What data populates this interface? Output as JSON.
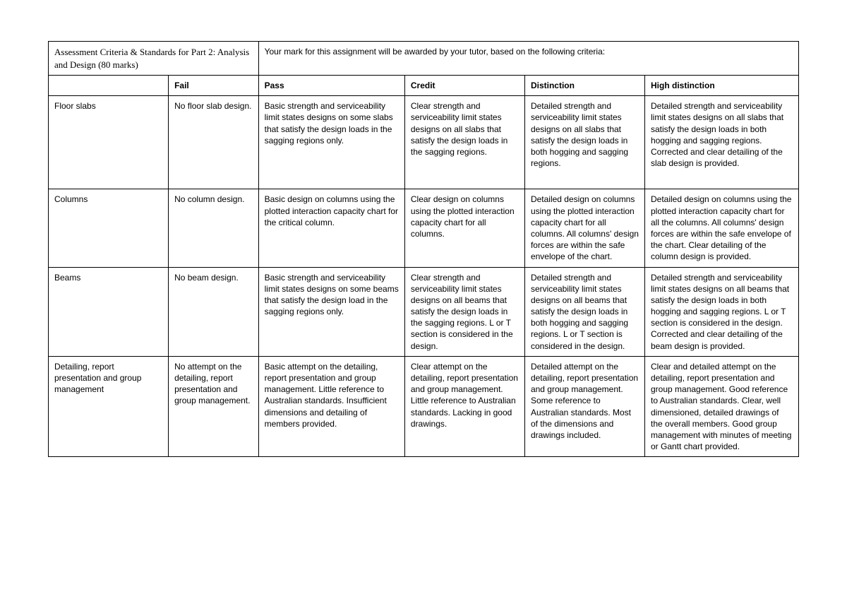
{
  "header": {
    "left": "Assessment Criteria & Standards for Part 2: Analysis and Design (80 marks)",
    "right": "Your mark for this assignment will be awarded by your tutor, based on the following criteria:"
  },
  "columns": {
    "criterion": "",
    "fail": "Fail",
    "pass": "Pass",
    "credit": "Credit",
    "distinction": "Distinction",
    "high_distinction": "High distinction"
  },
  "rows": [
    {
      "criterion": "Floor slabs",
      "fail": "No floor slab design.",
      "pass": "Basic strength and serviceability limit states designs on some slabs that satisfy the design loads in the sagging regions only.",
      "credit": "Clear strength and serviceability limit states designs on all slabs that satisfy the design loads in the sagging regions.",
      "distinction": "Detailed strength and serviceability limit states designs on all slabs that satisfy the design loads in both hogging and sagging regions.",
      "high_distinction": "Detailed strength and serviceability limit states designs on all slabs that satisfy the design loads in both hogging and sagging regions. Corrected and clear detailing of the slab design is provided."
    },
    {
      "criterion": "Columns",
      "fail": "No column design.",
      "pass": "Basic design on columns using the plotted interaction capacity chart for the critical column.",
      "credit": "Clear design on columns using the plotted interaction capacity chart for all columns.",
      "distinction": "Detailed design on columns using the plotted interaction capacity chart for all columns. All columns' design forces are within the safe envelope of the chart.",
      "high_distinction": "Detailed design on columns using the plotted interaction capacity chart for all the columns. All columns' design forces are within the safe envelope of the chart. Clear detailing of the column design is provided."
    },
    {
      "criterion": "Beams",
      "fail": "No beam design.",
      "pass": "Basic strength and serviceability limit states designs on some beams that satisfy the design load in the sagging regions only.",
      "credit": "Clear strength and serviceability limit states designs on all beams that satisfy the design loads in the sagging regions. L or T section is considered in the design.",
      "distinction": "Detailed strength and serviceability limit states designs on all beams that satisfy the design loads in both hogging and sagging regions. L or T section is considered in the design.",
      "high_distinction": "Detailed strength and serviceability limit states designs on all beams that satisfy the design loads in both hogging and sagging regions. L or T section is considered in the design. Corrected and clear detailing of the beam design is provided."
    },
    {
      "criterion": "Detailing, report presentation and group management",
      "fail": "No attempt on the detailing, report presentation and group management.",
      "pass": "Basic attempt on the detailing, report presentation and group management. Little reference to Australian standards. Insufficient dimensions and detailing of members provided.",
      "credit": "Clear attempt on the detailing, report presentation and group management. Little reference to Australian standards. Lacking in good drawings.",
      "distinction": "Detailed attempt on the detailing, report presentation and group management. Some reference to Australian standards. Most of the dimensions and drawings included.",
      "high_distinction": "Clear and detailed attempt on the detailing, report presentation and group management. Good reference to Australian standards. Clear, well dimensioned, detailed drawings of the overall members. Good group management with minutes of meeting or Gantt chart provided."
    }
  ]
}
